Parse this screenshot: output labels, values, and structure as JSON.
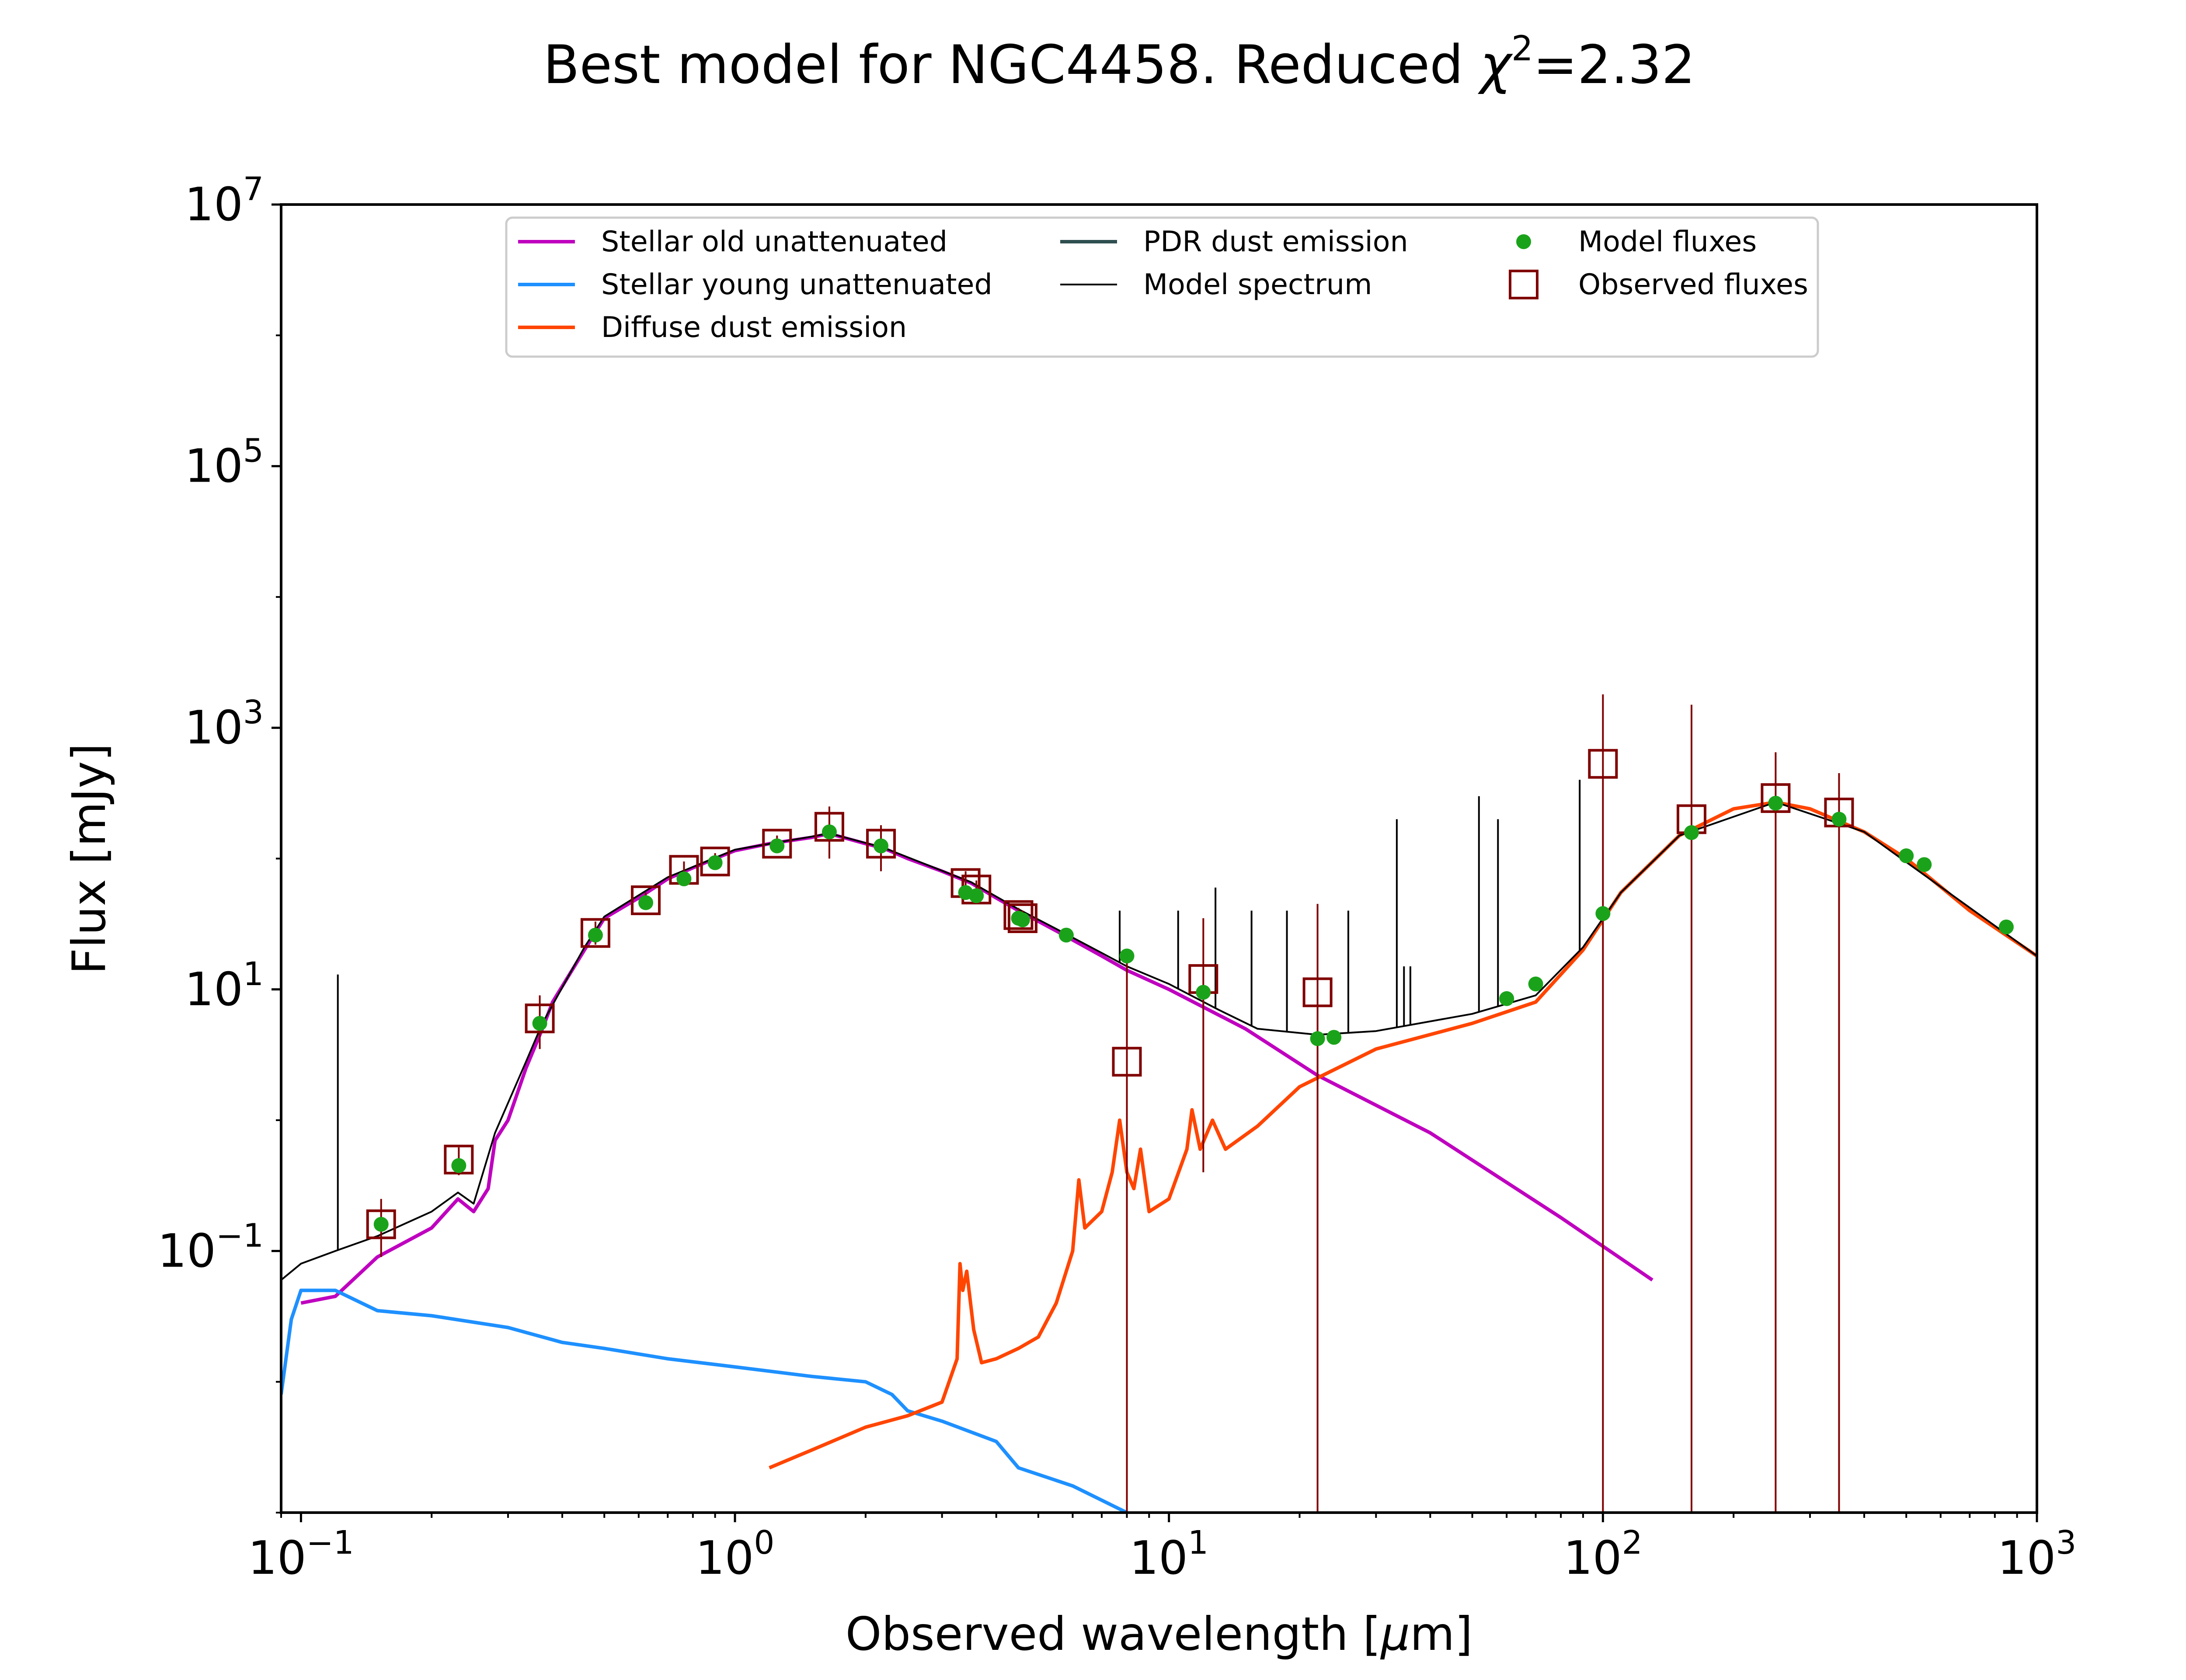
{
  "chart_data": {
    "type": "line",
    "title": "Best model for NGC4458. Reduced χ²=2.32",
    "title_main": "Best model for NGC4458. Reduced ",
    "title_chi": "χ",
    "title_sup": "2",
    "title_tail": "=2.32",
    "xlabel": "Observed wavelength [μm]",
    "xlabel_main": "Observed wavelength [",
    "xlabel_mu": "μ",
    "xlabel_tail": "m]",
    "ylabel": "Flux [mJy]",
    "x_scale": "log",
    "y_scale": "log",
    "xlim": [
      0.09,
      1000
    ],
    "ylim": [
      0.001,
      10000000
    ],
    "x_ticks": [
      {
        "value": 0.1,
        "base": "10",
        "exp": "−1"
      },
      {
        "value": 1,
        "base": "10",
        "exp": "0"
      },
      {
        "value": 10,
        "base": "10",
        "exp": "1"
      },
      {
        "value": 100,
        "base": "10",
        "exp": "2"
      },
      {
        "value": 1000,
        "base": "10",
        "exp": "3"
      }
    ],
    "y_ticks": [
      {
        "value": 0.1,
        "base": "10",
        "exp": "−1"
      },
      {
        "value": 10,
        "base": "10",
        "exp": "1"
      },
      {
        "value": 1000,
        "base": "10",
        "exp": "3"
      },
      {
        "value": 100000,
        "base": "10",
        "exp": "5"
      },
      {
        "value": 10000000,
        "base": "10",
        "exp": "7"
      }
    ],
    "grid": false,
    "legend_position": "top-center",
    "colors": {
      "stellar_old": "#bf00bf",
      "stellar_young": "#1e90ff",
      "diffuse_dust": "#ff4500",
      "pdr_dust": "#2f4f4f",
      "model_spectrum": "#000000",
      "model_fluxes": "#1aa31a",
      "observed_fluxes": "#800000"
    },
    "legend": [
      {
        "key": "stellar_old",
        "label": "Stellar old unattenuated",
        "kind": "line"
      },
      {
        "key": "stellar_young",
        "label": "Stellar young unattenuated",
        "kind": "line"
      },
      {
        "key": "diffuse_dust",
        "label": "Diffuse dust emission",
        "kind": "line"
      },
      {
        "key": "pdr_dust",
        "label": "PDR dust emission",
        "kind": "line"
      },
      {
        "key": "model_spectrum",
        "label": "Model spectrum",
        "kind": "thinline"
      },
      {
        "key": "model_fluxes",
        "label": "Model fluxes",
        "kind": "dot"
      },
      {
        "key": "observed_fluxes",
        "label": "Observed fluxes",
        "kind": "square"
      }
    ],
    "series": [
      {
        "key": "stellar_old",
        "points": [
          [
            0.1,
            0.04
          ],
          [
            0.12,
            0.045
          ],
          [
            0.15,
            0.09
          ],
          [
            0.2,
            0.15
          ],
          [
            0.23,
            0.25
          ],
          [
            0.25,
            0.2
          ],
          [
            0.27,
            0.3
          ],
          [
            0.28,
            0.7
          ],
          [
            0.3,
            1.0
          ],
          [
            0.33,
            2.5
          ],
          [
            0.36,
            5.0
          ],
          [
            0.38,
            8.0
          ],
          [
            0.45,
            20
          ],
          [
            0.5,
            35
          ],
          [
            0.6,
            50
          ],
          [
            0.7,
            70
          ],
          [
            0.8,
            85
          ],
          [
            0.9,
            100
          ],
          [
            1.0,
            115
          ],
          [
            1.2,
            130
          ],
          [
            1.5,
            145
          ],
          [
            1.65,
            155
          ],
          [
            2.0,
            130
          ],
          [
            2.2,
            120
          ],
          [
            2.5,
            100
          ],
          [
            3.0,
            80
          ],
          [
            3.5,
            65
          ],
          [
            4.0,
            50
          ],
          [
            4.5,
            40
          ],
          [
            5.5,
            28
          ],
          [
            7,
            18
          ],
          [
            8,
            14
          ],
          [
            10,
            10
          ],
          [
            15,
            5
          ],
          [
            22,
            2.2
          ],
          [
            40,
            0.8
          ],
          [
            80,
            0.18
          ],
          [
            130,
            0.06
          ]
        ]
      },
      {
        "key": "stellar_young",
        "points": [
          [
            0.09,
            0.008
          ],
          [
            0.095,
            0.03
          ],
          [
            0.1,
            0.05
          ],
          [
            0.12,
            0.05
          ],
          [
            0.15,
            0.035
          ],
          [
            0.2,
            0.032
          ],
          [
            0.3,
            0.026
          ],
          [
            0.4,
            0.02
          ],
          [
            0.5,
            0.018
          ],
          [
            0.7,
            0.015
          ],
          [
            1.0,
            0.013
          ],
          [
            1.5,
            0.011
          ],
          [
            2.0,
            0.01
          ],
          [
            2.3,
            0.008
          ],
          [
            2.5,
            0.006
          ],
          [
            3.0,
            0.005
          ],
          [
            4.0,
            0.0035
          ],
          [
            4.5,
            0.0022
          ],
          [
            6,
            0.0016
          ],
          [
            8,
            0.001
          ]
        ]
      },
      {
        "key": "diffuse_dust",
        "points": [
          [
            1.2,
            0.0022
          ],
          [
            1.5,
            0.003
          ],
          [
            2,
            0.0045
          ],
          [
            2.5,
            0.0055
          ],
          [
            3.0,
            0.007
          ],
          [
            3.25,
            0.015
          ],
          [
            3.3,
            0.08
          ],
          [
            3.35,
            0.05
          ],
          [
            3.42,
            0.07
          ],
          [
            3.55,
            0.025
          ],
          [
            3.7,
            0.014
          ],
          [
            4.0,
            0.015
          ],
          [
            4.5,
            0.018
          ],
          [
            5,
            0.022
          ],
          [
            5.5,
            0.04
          ],
          [
            6.0,
            0.1
          ],
          [
            6.2,
            0.35
          ],
          [
            6.4,
            0.15
          ],
          [
            7.0,
            0.2
          ],
          [
            7.4,
            0.4
          ],
          [
            7.7,
            1.0
          ],
          [
            8.0,
            0.4
          ],
          [
            8.3,
            0.3
          ],
          [
            8.6,
            0.6
          ],
          [
            9.0,
            0.2
          ],
          [
            10,
            0.25
          ],
          [
            11.0,
            0.6
          ],
          [
            11.3,
            1.2
          ],
          [
            11.8,
            0.6
          ],
          [
            12.6,
            1.0
          ],
          [
            13.5,
            0.6
          ],
          [
            16,
            0.9
          ],
          [
            20,
            1.8
          ],
          [
            30,
            3.5
          ],
          [
            50,
            5.5
          ],
          [
            70,
            8
          ],
          [
            90,
            20
          ],
          [
            110,
            55
          ],
          [
            150,
            150
          ],
          [
            200,
            240
          ],
          [
            250,
            270
          ],
          [
            300,
            240
          ],
          [
            400,
            160
          ],
          [
            500,
            100
          ],
          [
            700,
            40
          ],
          [
            1000,
            18
          ]
        ]
      },
      {
        "key": "model_spectrum",
        "points": [
          [
            0.09,
            0.06
          ],
          [
            0.1,
            0.08
          ],
          [
            0.12,
            0.1
          ],
          [
            0.15,
            0.13
          ],
          [
            0.2,
            0.2
          ],
          [
            0.23,
            0.28
          ],
          [
            0.25,
            0.23
          ],
          [
            0.28,
            0.8
          ],
          [
            0.33,
            2.8
          ],
          [
            0.36,
            5.5
          ],
          [
            0.45,
            21
          ],
          [
            0.5,
            36
          ],
          [
            0.7,
            72
          ],
          [
            1.0,
            117
          ],
          [
            1.5,
            147
          ],
          [
            1.65,
            156
          ],
          [
            2.2,
            121
          ],
          [
            3.5,
            66
          ],
          [
            4.5,
            41
          ],
          [
            5.5,
            29
          ],
          [
            7,
            19
          ],
          [
            8,
            15
          ],
          [
            10,
            11
          ],
          [
            13,
            7
          ],
          [
            16,
            5
          ],
          [
            22,
            4.5
          ],
          [
            30,
            4.8
          ],
          [
            50,
            6.5
          ],
          [
            70,
            9
          ],
          [
            90,
            21
          ],
          [
            110,
            55
          ],
          [
            150,
            150
          ],
          [
            250,
            270
          ],
          [
            400,
            160
          ],
          [
            1000,
            18
          ]
        ]
      }
    ],
    "emission_lines": [
      [
        0.1216,
        13
      ],
      [
        7.7,
        40
      ],
      [
        10.5,
        40
      ],
      [
        12.8,
        60
      ],
      [
        15.5,
        40
      ],
      [
        18.7,
        40
      ],
      [
        25.9,
        40
      ],
      [
        33.5,
        200
      ],
      [
        34.8,
        15
      ],
      [
        36,
        15
      ],
      [
        51.8,
        300
      ],
      [
        57.3,
        200
      ],
      [
        88.4,
        400
      ]
    ],
    "model_fluxes": [
      [
        0.153,
        0.16
      ],
      [
        0.231,
        0.45
      ],
      [
        0.355,
        5.5
      ],
      [
        0.477,
        26
      ],
      [
        0.623,
        46
      ],
      [
        0.763,
        70
      ],
      [
        0.9,
        93
      ],
      [
        1.25,
        125
      ],
      [
        1.65,
        160
      ],
      [
        2.17,
        125
      ],
      [
        3.4,
        55
      ],
      [
        3.6,
        52
      ],
      [
        4.5,
        35
      ],
      [
        4.6,
        34
      ],
      [
        5.8,
        26
      ],
      [
        8,
        18
      ],
      [
        12,
        9.5
      ],
      [
        22,
        4.2
      ],
      [
        24,
        4.3
      ],
      [
        60,
        8.5
      ],
      [
        70,
        11
      ],
      [
        100,
        38
      ],
      [
        160,
        158
      ],
      [
        250,
        265
      ],
      [
        350,
        200
      ],
      [
        500,
        105
      ],
      [
        550,
        90
      ],
      [
        850,
        30
      ]
    ],
    "observed_fluxes": [
      {
        "x": 0.153,
        "y": 0.16,
        "lo": 0.09,
        "hi": 0.25
      },
      {
        "x": 0.231,
        "y": 0.5,
        "lo": 0.38,
        "hi": 0.62
      },
      {
        "x": 0.355,
        "y": 6.0,
        "lo": 3.5,
        "hi": 9.0
      },
      {
        "x": 0.477,
        "y": 27,
        "lo": 22,
        "hi": 33
      },
      {
        "x": 0.623,
        "y": 48,
        "lo": 42,
        "hi": 55
      },
      {
        "x": 0.763,
        "y": 82,
        "lo": 70,
        "hi": 95
      },
      {
        "x": 0.9,
        "y": 95,
        "lo": 85,
        "hi": 110
      },
      {
        "x": 1.25,
        "y": 130,
        "lo": 110,
        "hi": 150
      },
      {
        "x": 1.65,
        "y": 175,
        "lo": 100,
        "hi": 250
      },
      {
        "x": 2.17,
        "y": 130,
        "lo": 80,
        "hi": 180
      },
      {
        "x": 3.4,
        "y": 65,
        "lo": 50,
        "hi": 80
      },
      {
        "x": 3.6,
        "y": 58,
        "lo": 48,
        "hi": 68
      },
      {
        "x": 4.5,
        "y": 37,
        "lo": 32,
        "hi": 42
      },
      {
        "x": 4.6,
        "y": 35,
        "lo": 30,
        "hi": 40
      },
      {
        "x": 8,
        "y": 2.8,
        "lo": 0.001,
        "hi": 20
      },
      {
        "x": 12,
        "y": 12,
        "lo": 0.4,
        "hi": 35
      },
      {
        "x": 22,
        "y": 9.5,
        "lo": 0.001,
        "hi": 45
      },
      {
        "x": 100,
        "y": 530,
        "lo": 0.001,
        "hi": 1800
      },
      {
        "x": 160,
        "y": 200,
        "lo": 0.001,
        "hi": 1500
      },
      {
        "x": 250,
        "y": 290,
        "lo": 0.001,
        "hi": 650
      },
      {
        "x": 350,
        "y": 225,
        "lo": 0.001,
        "hi": 450
      }
    ]
  }
}
